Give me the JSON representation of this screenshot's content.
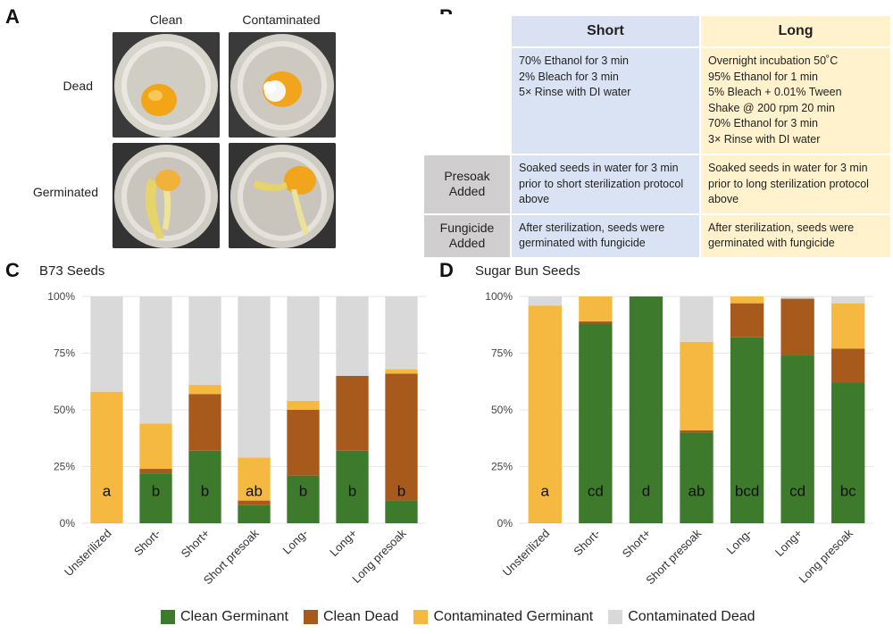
{
  "panels": {
    "a": "A",
    "b": "B",
    "c": "C",
    "d": "D"
  },
  "photos": {
    "col_clean": "Clean",
    "col_contaminated": "Contaminated",
    "row_dead": "Dead",
    "row_germinated": "Germinated"
  },
  "protocol_table": {
    "short_header": "Short",
    "long_header": "Long",
    "short_steps": [
      "70% Ethanol for 3 min",
      "2% Bleach for 3 min",
      "5× Rinse with DI water"
    ],
    "long_steps": [
      "Overnight incubation 50˚C",
      "95% Ethanol for 1 min",
      "5% Bleach + 0.01% Tween",
      "Shake @ 200 rpm 20 min",
      "70% Ethanol for 3 min",
      "3× Rinse with DI water"
    ],
    "presoak_label": "Presoak Added",
    "presoak_short": "Soaked seeds in water for 3 min prior to short sterilization protocol above",
    "presoak_long": "Soaked seeds in water for 3 min prior to long sterilization protocol above",
    "fungicide_label": "Fungicide Added",
    "fungicide_short": "After sterilization, seeds were germinated with fungicide",
    "fungicide_long": "After sterilization, seeds were germinated with fungicide"
  },
  "colors": {
    "clean_germinant": "#3d7a2c",
    "clean_dead": "#a85a1c",
    "contaminated_germinant": "#f5b942",
    "contaminated_dead": "#d9d9d9"
  },
  "legend": [
    "Clean Germinant",
    "Clean Dead",
    "Contaminated Germinant",
    "Contaminated Dead"
  ],
  "chart_data": [
    {
      "type": "bar",
      "stacked": true,
      "title": "B73 Seeds",
      "categories": [
        "Unsterilized",
        "Short-",
        "Short+",
        "Short presoak",
        "Long-",
        "Long+",
        "Long presoak"
      ],
      "ylim": [
        0,
        100
      ],
      "yticks": [
        "0%",
        "25%",
        "50%",
        "75%",
        "100%"
      ],
      "series": [
        {
          "name": "Clean Germinant",
          "values": [
            0,
            22,
            32,
            8,
            21,
            32,
            10
          ]
        },
        {
          "name": "Clean Dead",
          "values": [
            0,
            2,
            25,
            2,
            29,
            33,
            56
          ]
        },
        {
          "name": "Contaminated Germinant",
          "values": [
            58,
            20,
            4,
            19,
            4,
            0,
            2
          ]
        },
        {
          "name": "Contaminated Dead",
          "values": [
            42,
            56,
            39,
            71,
            46,
            35,
            32
          ]
        }
      ],
      "letters": [
        "a",
        "b",
        "b",
        "ab",
        "b",
        "b",
        "b"
      ]
    },
    {
      "type": "bar",
      "stacked": true,
      "title": "Sugar Bun Seeds",
      "categories": [
        "Unsterilized",
        "Short-",
        "Short+",
        "Short presoak",
        "Long-",
        "Long+",
        "Long presoak"
      ],
      "ylim": [
        0,
        100
      ],
      "yticks": [
        "0%",
        "25%",
        "50%",
        "75%",
        "100%"
      ],
      "series": [
        {
          "name": "Clean Germinant",
          "values": [
            0,
            88,
            100,
            40,
            82,
            74,
            62
          ]
        },
        {
          "name": "Clean Dead",
          "values": [
            0,
            1,
            0,
            1,
            15,
            25,
            15
          ]
        },
        {
          "name": "Contaminated Germinant",
          "values": [
            96,
            11,
            0,
            39,
            3,
            0,
            20
          ]
        },
        {
          "name": "Contaminated Dead",
          "values": [
            4,
            0,
            0,
            20,
            0,
            1,
            3
          ]
        }
      ],
      "letters": [
        "a",
        "cd",
        "d",
        "ab",
        "bcd",
        "cd",
        "bc"
      ]
    }
  ]
}
